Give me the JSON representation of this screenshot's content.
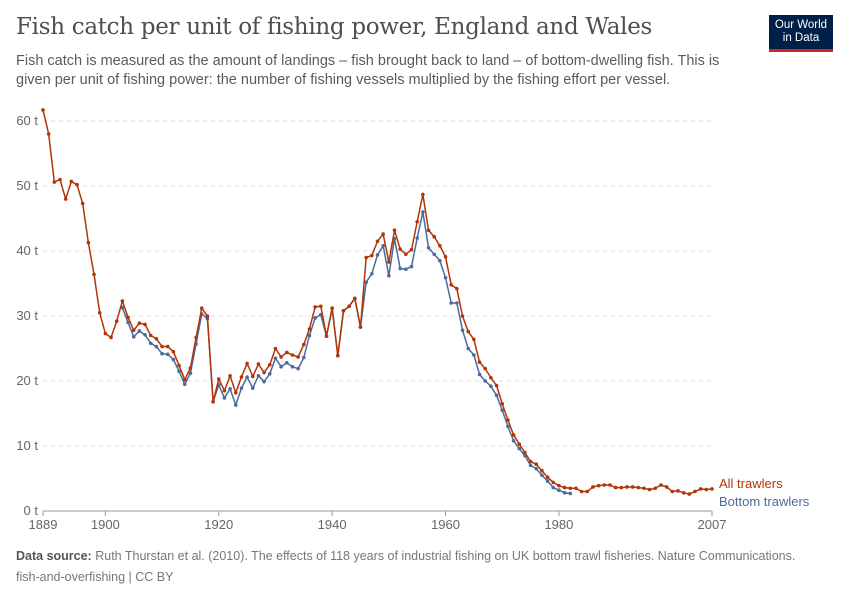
{
  "title": "Fish catch per unit of fishing power, England and Wales",
  "subtitle": "Fish catch is measured as the amount of landings – fish brought back to land – of bottom-dwelling fish. This is given per unit of fishing power: the number of fishing vessels multiplied by the fishing effort per vessel.",
  "logo": "Our World in Data",
  "footer": {
    "source_label": "Data source:",
    "source": "Ruth Thurstan et al. (2010). The effects of 118 years of industrial fishing on UK bottom trawl fisheries. Nature Communications.",
    "line2": "fish-and-overfishing | CC BY"
  },
  "chart_data": {
    "type": "line",
    "title": "Fish catch per unit of fishing power, England and Wales",
    "xlim": [
      1889,
      2007
    ],
    "ylim": [
      0,
      60
    ],
    "grid": "horizontal dashed",
    "x_ticks": [
      "1889",
      "1900",
      "1920",
      "1940",
      "1960",
      "1980",
      "2007"
    ],
    "y_ticks": [
      "0 t",
      "10 t",
      "20 t",
      "30 t",
      "40 t",
      "50 t",
      "60 t"
    ],
    "legend": "end-of-line labels right",
    "series": [
      {
        "name": "All trawlers",
        "color": "#b13507",
        "start": 1889,
        "values": [
          61.7,
          58,
          50.6,
          51,
          48,
          50.7,
          50.2,
          47.3,
          41.3,
          36.4,
          30.5,
          27.3,
          26.7,
          29.2,
          32.3,
          29.8,
          27.8,
          28.9,
          28.7,
          27,
          26.5,
          25.3,
          25.3,
          24.5,
          22.4,
          20.2,
          22,
          26.7,
          31.2,
          30,
          16.8,
          20.3,
          18.5,
          20.8,
          18.2,
          20.6,
          22.7,
          20.7,
          22.6,
          21.3,
          22.5,
          25,
          23.7,
          24.4,
          24,
          23.7,
          25.6,
          28,
          31.4,
          31.5,
          26.9,
          31.2,
          23.9,
          30.8,
          31.5,
          32.7,
          28.3,
          39,
          39.3,
          41.5,
          42.6,
          38.3,
          43.2,
          40.3,
          39.5,
          40.2,
          44.5,
          48.7,
          43.2,
          42.2,
          40.8,
          39.1,
          34.8,
          34.2,
          30,
          27.6,
          26.4,
          22.9,
          21.9,
          20.5,
          19.3,
          16.5,
          14,
          11.7,
          10.3,
          9,
          7.6,
          7.2,
          6.2,
          5.2,
          4.4,
          3.9,
          3.6,
          3.5,
          3.5,
          3,
          3,
          3.7,
          3.9,
          4,
          4,
          3.6,
          3.6,
          3.7,
          3.7,
          3.6,
          3.5,
          3.3,
          3.5,
          4,
          3.7,
          3,
          3.1,
          2.8,
          2.6,
          3,
          3.4,
          3.3,
          3.4
        ]
      },
      {
        "name": "Bottom trawlers",
        "color": "#4c6a9c",
        "start": 1903,
        "values": [
          31.3,
          29,
          26.8,
          27.7,
          27.1,
          25.8,
          25.3,
          24.2,
          24.1,
          23.3,
          21.5,
          19.5,
          21.2,
          25.7,
          30.3,
          29.6,
          16.8,
          19.4,
          17.4,
          18.8,
          16.3,
          18.9,
          20.6,
          18.9,
          20.8,
          19.9,
          21.1,
          23.5,
          22.2,
          22.8,
          22.2,
          21.9,
          23.6,
          27,
          29.7,
          30.2,
          26.9,
          31.2,
          23.9,
          30.8,
          31.5,
          32.7,
          28.3,
          35.2,
          36.5,
          39.4,
          40.8,
          36.2,
          41.9,
          37.3,
          37.2,
          37.6,
          42,
          46,
          40.5,
          39.5,
          38.5,
          35.9,
          32,
          32,
          27.8,
          25,
          24,
          21,
          20,
          19.2,
          17.8,
          15.5,
          13,
          10.8,
          9.6,
          8.5,
          7,
          6.5,
          5.5,
          4.6,
          3.6,
          3.2,
          2.8,
          2.7
        ]
      }
    ]
  }
}
